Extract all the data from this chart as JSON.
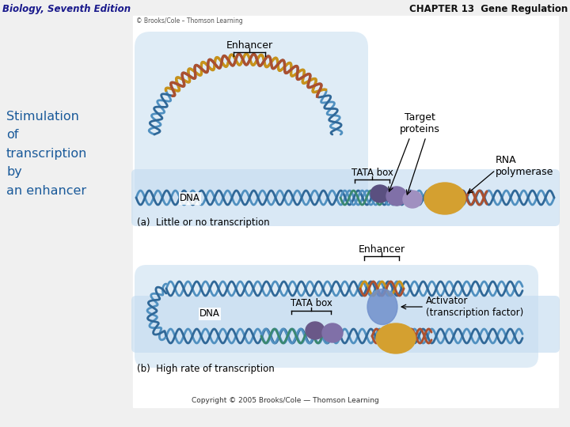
{
  "title_left": "Biology, Seventh Edition",
  "title_right": "CHAPTER 13  Gene Regulation",
  "left_label_lines": [
    "Stimulation",
    "of",
    "transcription",
    "by",
    "an enhancer"
  ],
  "copyright_text": "Copyright © 2005 Brooks/Cole — Thomson Learning",
  "watermark_text": "© Brooks/Cole – Thomson Learning",
  "panel_a_label": "(a)  Little or no transcription",
  "panel_b_label": "(b)  High rate of transcription",
  "bg_color": "#f0f0f0",
  "panel_bg": "#ffffff",
  "dna_blue1": "#5090c0",
  "dna_blue2": "#306898",
  "dna_teal": "#3a8870",
  "dna_brown": "#aa5030",
  "dna_gold": "#c8921a",
  "rna_pol_color": "#d4a030",
  "protein_purple1": "#8070a8",
  "protein_purple2": "#a090c0",
  "activator_blue": "#7090cc",
  "loop_bg": "#c5ddf0",
  "title_left_color": "#1a1a8c",
  "title_right_color": "#111111",
  "label_color": "#1a5a9a",
  "border_color": "#aaaaaa"
}
